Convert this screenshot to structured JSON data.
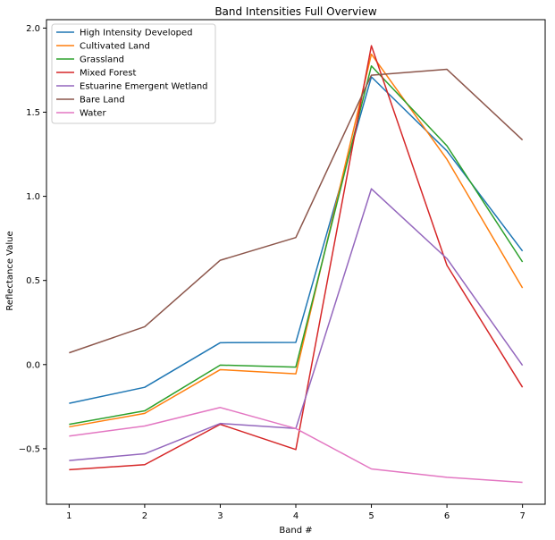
{
  "chart_data": {
    "type": "line",
    "title": "Band Intensities Full Overview",
    "xlabel": "Band #",
    "ylabel": "Reflectance Value",
    "x": [
      1,
      2,
      3,
      4,
      5,
      6,
      7
    ],
    "xticks": [
      "1",
      "2",
      "3",
      "4",
      "5",
      "6",
      "7"
    ],
    "yticks": [
      -0.5,
      0.0,
      0.5,
      1.0,
      1.5,
      2.0
    ],
    "ytick_labels": [
      "−0.5",
      "0.0",
      "0.5",
      "1.0",
      "1.5",
      "2.0"
    ],
    "xlim": [
      0.7,
      7.3
    ],
    "ylim": [
      -0.83,
      2.05
    ],
    "grid": false,
    "legend_position": "top-left",
    "series": [
      {
        "name": "High Intensity Developed",
        "color": "#1f77b4",
        "values": [
          -0.23,
          -0.135,
          0.13,
          0.132,
          1.71,
          1.27,
          0.675
        ]
      },
      {
        "name": "Cultivated Land",
        "color": "#ff7f0e",
        "values": [
          -0.37,
          -0.29,
          -0.03,
          -0.055,
          1.845,
          1.22,
          0.455
        ]
      },
      {
        "name": "Grassland",
        "color": "#2ca02c",
        "values": [
          -0.355,
          -0.275,
          -0.003,
          -0.015,
          1.775,
          1.3,
          0.61
        ]
      },
      {
        "name": "Mixed Forest",
        "color": "#d62728",
        "values": [
          -0.625,
          -0.595,
          -0.355,
          -0.505,
          1.895,
          0.59,
          -0.135
        ]
      },
      {
        "name": "Estuarine Emergent Wetland",
        "color": "#9467bd",
        "values": [
          -0.57,
          -0.53,
          -0.35,
          -0.38,
          1.045,
          0.63,
          -0.005
        ]
      },
      {
        "name": "Bare Land",
        "color": "#8c564b",
        "values": [
          0.07,
          0.225,
          0.62,
          0.755,
          1.72,
          1.755,
          1.335
        ]
      },
      {
        "name": "Water",
        "color": "#e377c2",
        "values": [
          -0.425,
          -0.365,
          -0.255,
          -0.38,
          -0.62,
          -0.67,
          -0.7
        ]
      }
    ]
  }
}
